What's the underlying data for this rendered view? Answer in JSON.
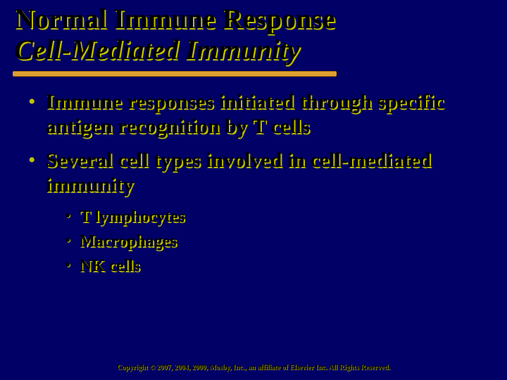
{
  "slide": {
    "title_line1": "Normal Immune Response",
    "title_line2": "Cell-Mediated Immunity",
    "bullets": [
      {
        "text": "Immune responses initiated through specific antigen recognition by T cells"
      },
      {
        "text": "Several cell types involved in cell-mediated immunity",
        "sub": [
          "T lymphocytes",
          "Macrophages",
          "NK cells"
        ]
      }
    ],
    "footer": "Copyright © 2007, 2004, 2000, Mosby, Inc., an affiliate of Elsevier Inc. All Rights Reserved."
  },
  "style": {
    "background_color": "#000066",
    "accent_shadow_color": "#c0c000",
    "divider_color": "#e0a030",
    "title_fontsize_pt": 40,
    "body_fontsize_pt": 30,
    "sub_fontsize_pt": 24,
    "footer_fontsize_pt": 10,
    "font_family": "Times New Roman"
  }
}
